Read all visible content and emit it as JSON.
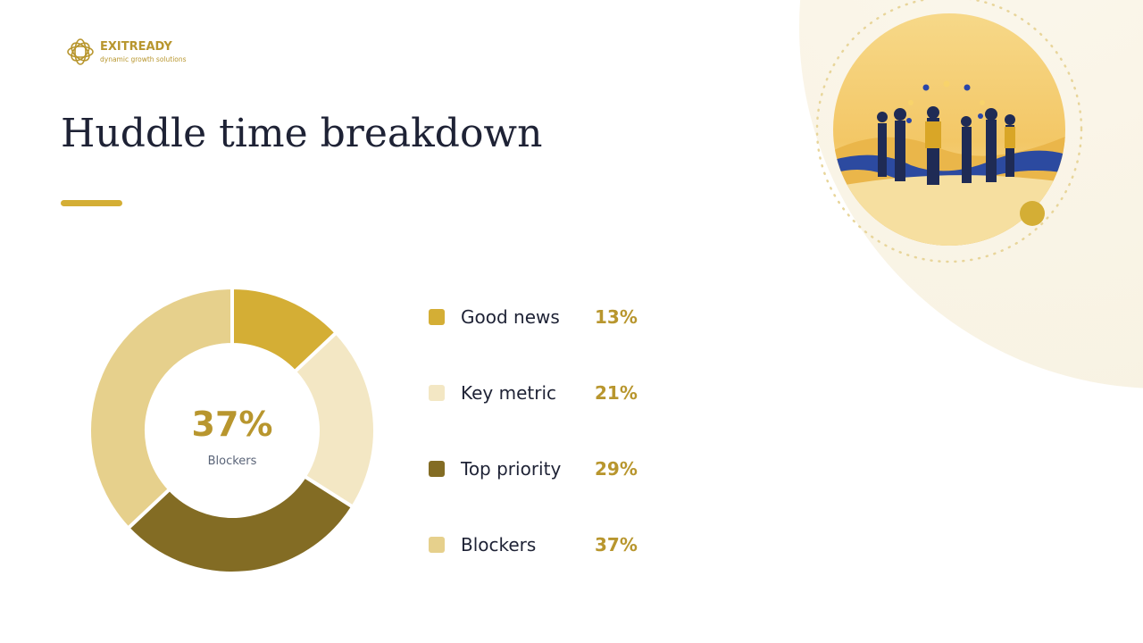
{
  "brand": {
    "name": "EXITREADY",
    "tagline": "dynamic growth solutions"
  },
  "chart_data": {
    "type": "pie",
    "donut": true,
    "title": "Huddle time breakdown",
    "categories": [
      "Good news",
      "Key metric",
      "Top priority",
      "Blockers"
    ],
    "values": [
      13,
      21,
      29,
      37
    ],
    "value_labels": [
      "13%",
      "21%",
      "29%",
      "37%"
    ],
    "colors": [
      "#d4ae35",
      "#f3e7c4",
      "#836c24",
      "#e6d08c"
    ],
    "highlight": 3
  }
}
